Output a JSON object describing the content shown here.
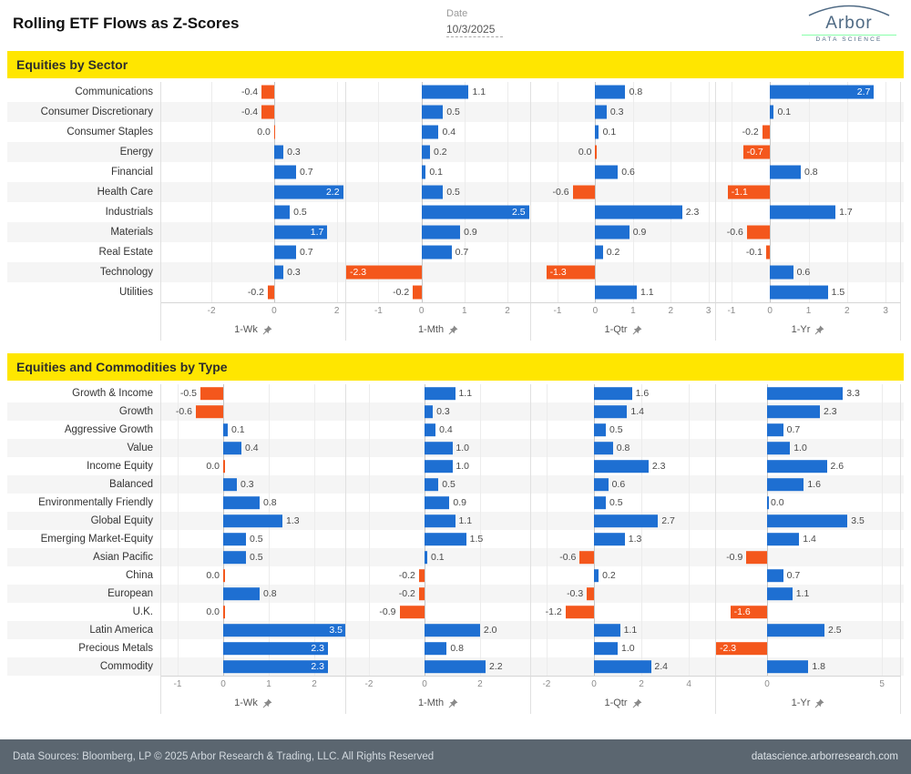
{
  "header": {
    "title": "Rolling ETF Flows as Z-Scores",
    "date_label": "Date",
    "date_value": "10/3/2025",
    "logo": {
      "name": "Arbor",
      "tagline": "DATA SCIENCE"
    }
  },
  "colors": {
    "positive": "#1e6fd2",
    "negative": "#f4571c",
    "header_band": "#ffe600",
    "footer_bg": "#5b6670"
  },
  "footer": {
    "left": "Data Sources: Bloomberg, LP © 2025 Arbor Research & Trading, LLC. All Rights Reserved",
    "right": "datascience.arborresearch.com"
  },
  "chart_data": [
    {
      "type": "bar",
      "orientation": "horizontal",
      "title": "Equities by Sector",
      "legend": "none",
      "grid": true,
      "categories": [
        "Communications",
        "Consumer Discretionary",
        "Consumer Staples",
        "Energy",
        "Financial",
        "Health Care",
        "Industrials",
        "Materials",
        "Real Estate",
        "Technology",
        "Utilities"
      ],
      "periods": [
        {
          "label": "1-Wk",
          "min": -3.6,
          "max": 2.3,
          "ticks": [
            -2,
            0,
            2
          ],
          "values": [
            -0.4,
            -0.4,
            -0.0,
            0.3,
            0.7,
            2.2,
            0.5,
            1.7,
            0.7,
            0.3,
            -0.2
          ]
        },
        {
          "label": "1-Mth",
          "min": -1.75,
          "max": 2.55,
          "ticks": [
            -1,
            0,
            1,
            2
          ],
          "values": [
            1.1,
            0.5,
            0.4,
            0.2,
            0.1,
            0.5,
            2.5,
            0.9,
            0.7,
            -2.3,
            -0.2
          ]
        },
        {
          "label": "1-Qtr",
          "min": -1.7,
          "max": 3.2,
          "ticks": [
            -1,
            0,
            1,
            2,
            3
          ],
          "values": [
            0.8,
            0.3,
            0.1,
            -0.0,
            0.6,
            -0.6,
            2.3,
            0.9,
            0.2,
            -1.3,
            1.1
          ]
        },
        {
          "label": "1-Yr",
          "min": -1.4,
          "max": 3.4,
          "ticks": [
            -1,
            0,
            1,
            2,
            3
          ],
          "values": [
            2.7,
            0.1,
            -0.2,
            -0.7,
            0.8,
            -1.1,
            1.7,
            -0.6,
            -0.1,
            0.6,
            1.5
          ]
        }
      ]
    },
    {
      "type": "bar",
      "orientation": "horizontal",
      "title": "Equities and Commodities by Type",
      "legend": "none",
      "grid": true,
      "categories": [
        "Growth & Income",
        "Growth",
        "Aggressive Growth",
        "Value",
        "Income Equity",
        "Balanced",
        "Environmentally Friendly",
        "Global Equity",
        "Emerging Market-Equity",
        "Asian Pacific",
        "China",
        "European",
        "U.K.",
        "Latin America",
        "Precious Metals",
        "Commodity"
      ],
      "periods": [
        {
          "label": "1-Wk",
          "min": -1.36,
          "max": 2.7,
          "ticks": [
            -1,
            0,
            1,
            2
          ],
          "values": [
            -0.5,
            -0.6,
            0.1,
            0.4,
            -0.0,
            0.3,
            0.8,
            1.3,
            0.5,
            0.5,
            -0.0,
            0.8,
            -0.0,
            3.5,
            2.3,
            2.3
          ]
        },
        {
          "label": "1-Mth",
          "min": -2.82,
          "max": 3.84,
          "ticks": [
            -2,
            0,
            2
          ],
          "values": [
            1.1,
            0.3,
            0.4,
            1.0,
            1.0,
            0.5,
            0.9,
            1.1,
            1.5,
            0.1,
            -0.2,
            -0.2,
            -0.9,
            2.0,
            0.8,
            2.2
          ]
        },
        {
          "label": "1-Qtr",
          "min": -2.65,
          "max": 5.15,
          "ticks": [
            -2,
            0,
            2,
            4
          ],
          "values": [
            1.6,
            1.4,
            0.5,
            0.8,
            2.3,
            0.6,
            0.5,
            2.7,
            1.3,
            -0.6,
            0.2,
            -0.3,
            -1.2,
            1.1,
            1.0,
            2.4
          ]
        },
        {
          "label": "1-Yr",
          "min": -2.22,
          "max": 5.83,
          "ticks": [
            0,
            5
          ],
          "values": [
            3.3,
            2.3,
            0.7,
            1.0,
            2.6,
            1.6,
            0.0,
            3.5,
            1.4,
            -0.9,
            0.7,
            1.1,
            -1.6,
            2.5,
            -2.3,
            1.8
          ]
        }
      ]
    }
  ]
}
